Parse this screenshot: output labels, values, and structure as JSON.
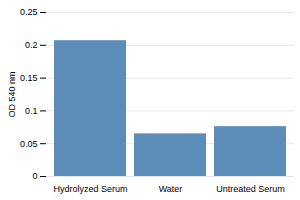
{
  "chart_data": {
    "type": "bar",
    "categories": [
      "Hydrolyzed Serum",
      "Water",
      "Untreated Serum"
    ],
    "values": [
      0.207,
      0.065,
      0.076
    ],
    "color": "#5B8DB8",
    "ylabel": "OD 540 nm",
    "ylim": [
      0,
      0.25
    ],
    "yticks": [
      0,
      0.05,
      0.1,
      0.15,
      0.2,
      0.25
    ],
    "grid": true
  }
}
